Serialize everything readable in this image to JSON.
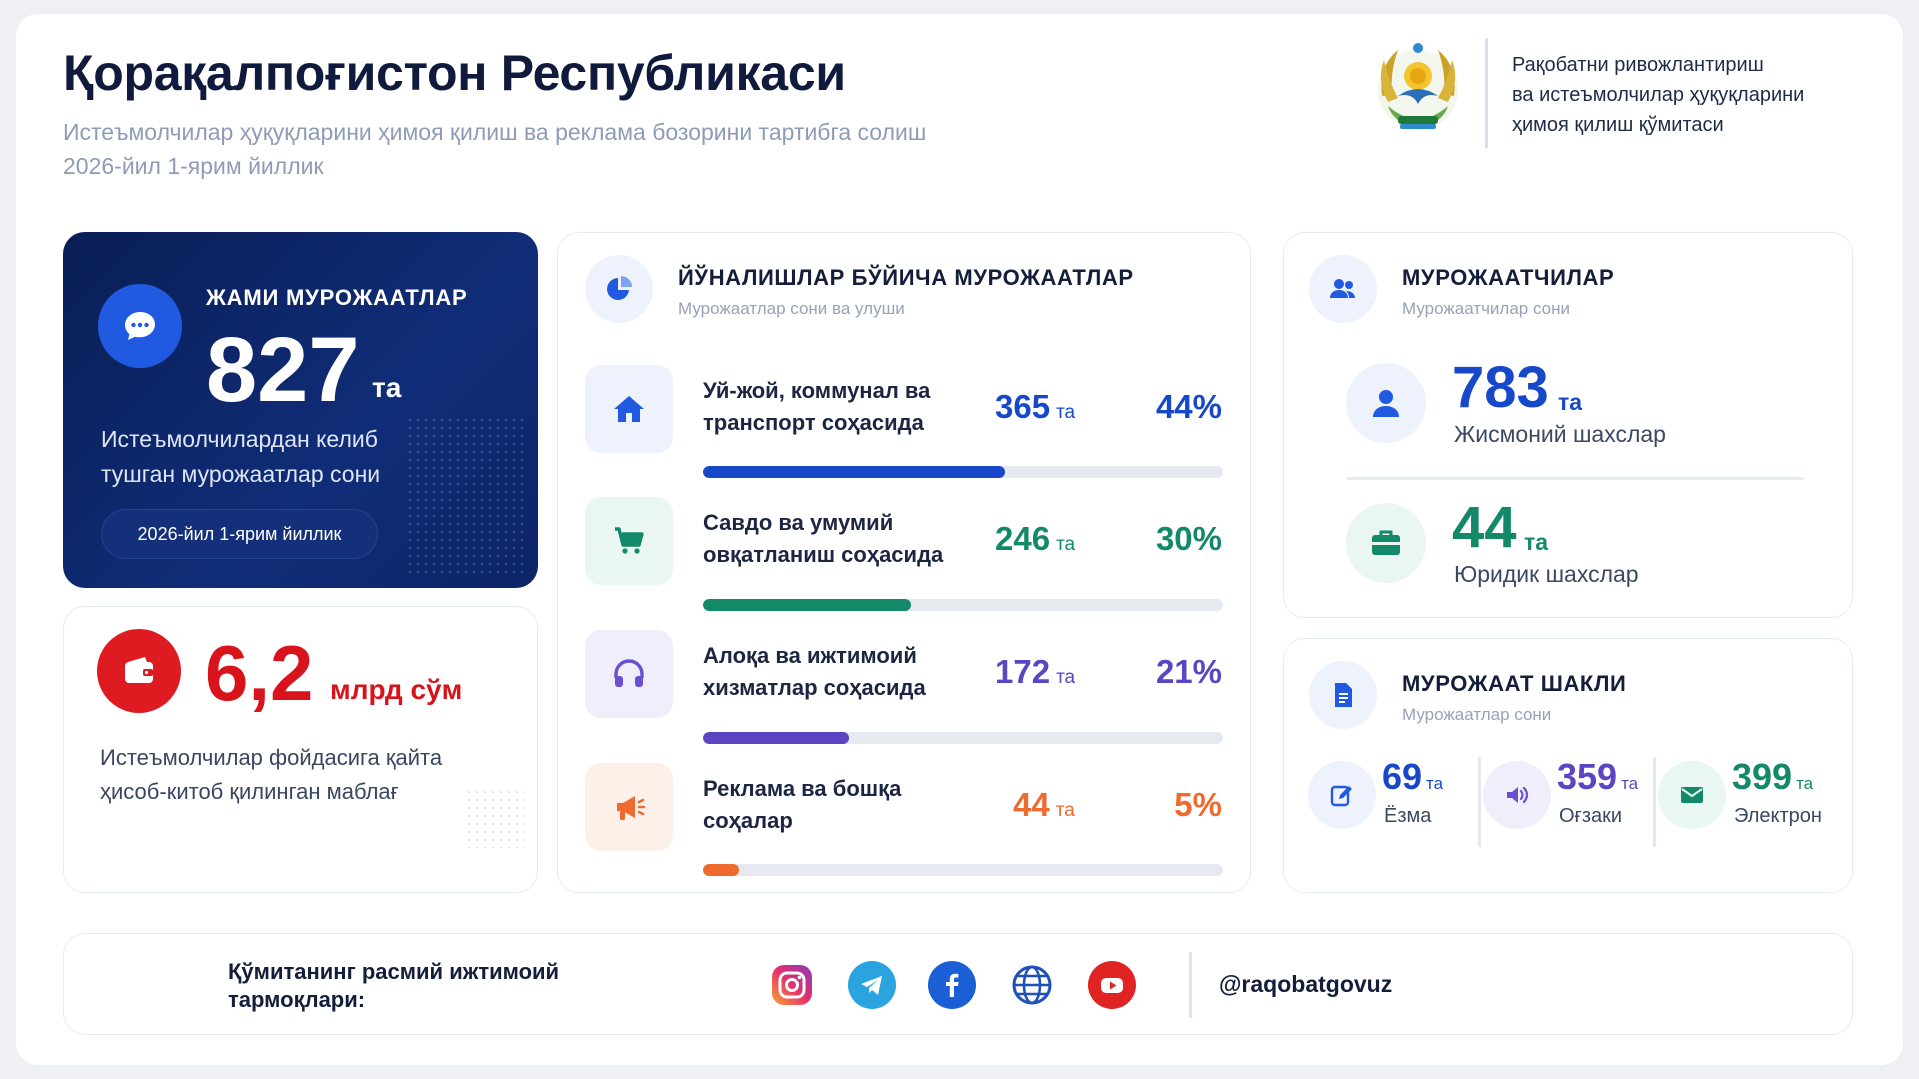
{
  "header": {
    "title": "Қорақалпоғистон Республикаси",
    "subtitle_line1": "Истеъмолчилар ҳуқуқларини ҳимоя қилиш ва реклама бозорини тартибга солиш",
    "subtitle_line2": "2026-йил 1-ярим йиллик",
    "org_line1": "Рақобатни ривожлантириш",
    "org_line2": "ва истеъмолчилар ҳуқуқларини",
    "org_line3": "ҳимоя қилиш қўмитаси",
    "emblem_icon": "state-emblem-icon"
  },
  "total": {
    "label": "ЖАМИ МУРОЖААТЛАР",
    "value": "827",
    "unit": "та",
    "desc_line1": "Истеъмолчилардан келиб",
    "desc_line2": "тушган мурожаатлар сони",
    "period": "2026-йил 1-ярим йиллик",
    "icon": "chat-icon"
  },
  "money": {
    "value": "6,2",
    "unit": "млрд сўм",
    "desc_line1": "Истеъмолчилар фойдасига қайта",
    "desc_line2": "ҳисоб-китоб қилинган маблағ",
    "icon": "wallet-icon"
  },
  "directions": {
    "title": "ЙЎНАЛИШЛАР БЎЙИЧА МУРОЖААТЛАР",
    "subtitle": "Мурожаатлар сони ва улуши",
    "unit": "та",
    "rows": [
      {
        "line1": "Уй-жой, коммунал ва",
        "line2": "транспорт соҳасида",
        "count": "365",
        "percent": "44%",
        "share": 0.58,
        "color": "#1748c9",
        "bg": "#edf2fc",
        "icon": "home-icon"
      },
      {
        "line1": "Савдо ва умумий",
        "line2": "овқатланиш соҳасида",
        "count": "246",
        "percent": "30%",
        "share": 0.4,
        "color": "#13896a",
        "bg": "#e9f6f1",
        "icon": "cart-icon"
      },
      {
        "line1": "Алоқа ва ижтимоий",
        "line2": "хизматлар соҳасида",
        "count": "172",
        "percent": "21%",
        "share": 0.28,
        "color": "#5b45c2",
        "bg": "#f1eefb",
        "icon": "headphones-icon"
      },
      {
        "line1": "Реклама ва бошқа",
        "line2": "соҳалар",
        "count": "44",
        "percent": "5%",
        "share": 0.07,
        "color": "#ef6a2e",
        "bg": "#fdf0e8",
        "icon": "megaphone-icon"
      }
    ]
  },
  "applicants": {
    "title": "МУРОЖААТЧИЛАР",
    "subtitle": "Мурожаатчилар сони",
    "individuals": {
      "value": "783",
      "unit": "та",
      "label": "Жисмоний шахслар",
      "color": "#1748c9",
      "icon": "person-icon"
    },
    "legal": {
      "value": "44",
      "unit": "та",
      "label": "Юридик шахслар",
      "color": "#13896a",
      "icon": "briefcase-icon"
    }
  },
  "form": {
    "title": "МУРОЖААТ ШАКЛИ",
    "subtitle": "Мурожаатлар сони",
    "unit": "та",
    "items": [
      {
        "value": "69",
        "label": "Ёзма",
        "color": "#1748c9",
        "bg": "#edf2fc",
        "icon": "pen-icon"
      },
      {
        "value": "359",
        "label": "Оғзаки",
        "color": "#5b45c2",
        "bg": "#f1eefb",
        "icon": "speaker-icon"
      },
      {
        "value": "399",
        "label": "Электрон",
        "color": "#13896a",
        "bg": "#e9f6f1",
        "icon": "mail-icon"
      }
    ]
  },
  "footer": {
    "text_line1": "Қўмитанинг расмий ижтимоий",
    "text_line2": "тармоқлари:",
    "handle": "@raqobatgovuz",
    "socials": [
      "instagram-icon",
      "telegram-icon",
      "facebook-icon",
      "globe-icon",
      "youtube-icon"
    ]
  }
}
